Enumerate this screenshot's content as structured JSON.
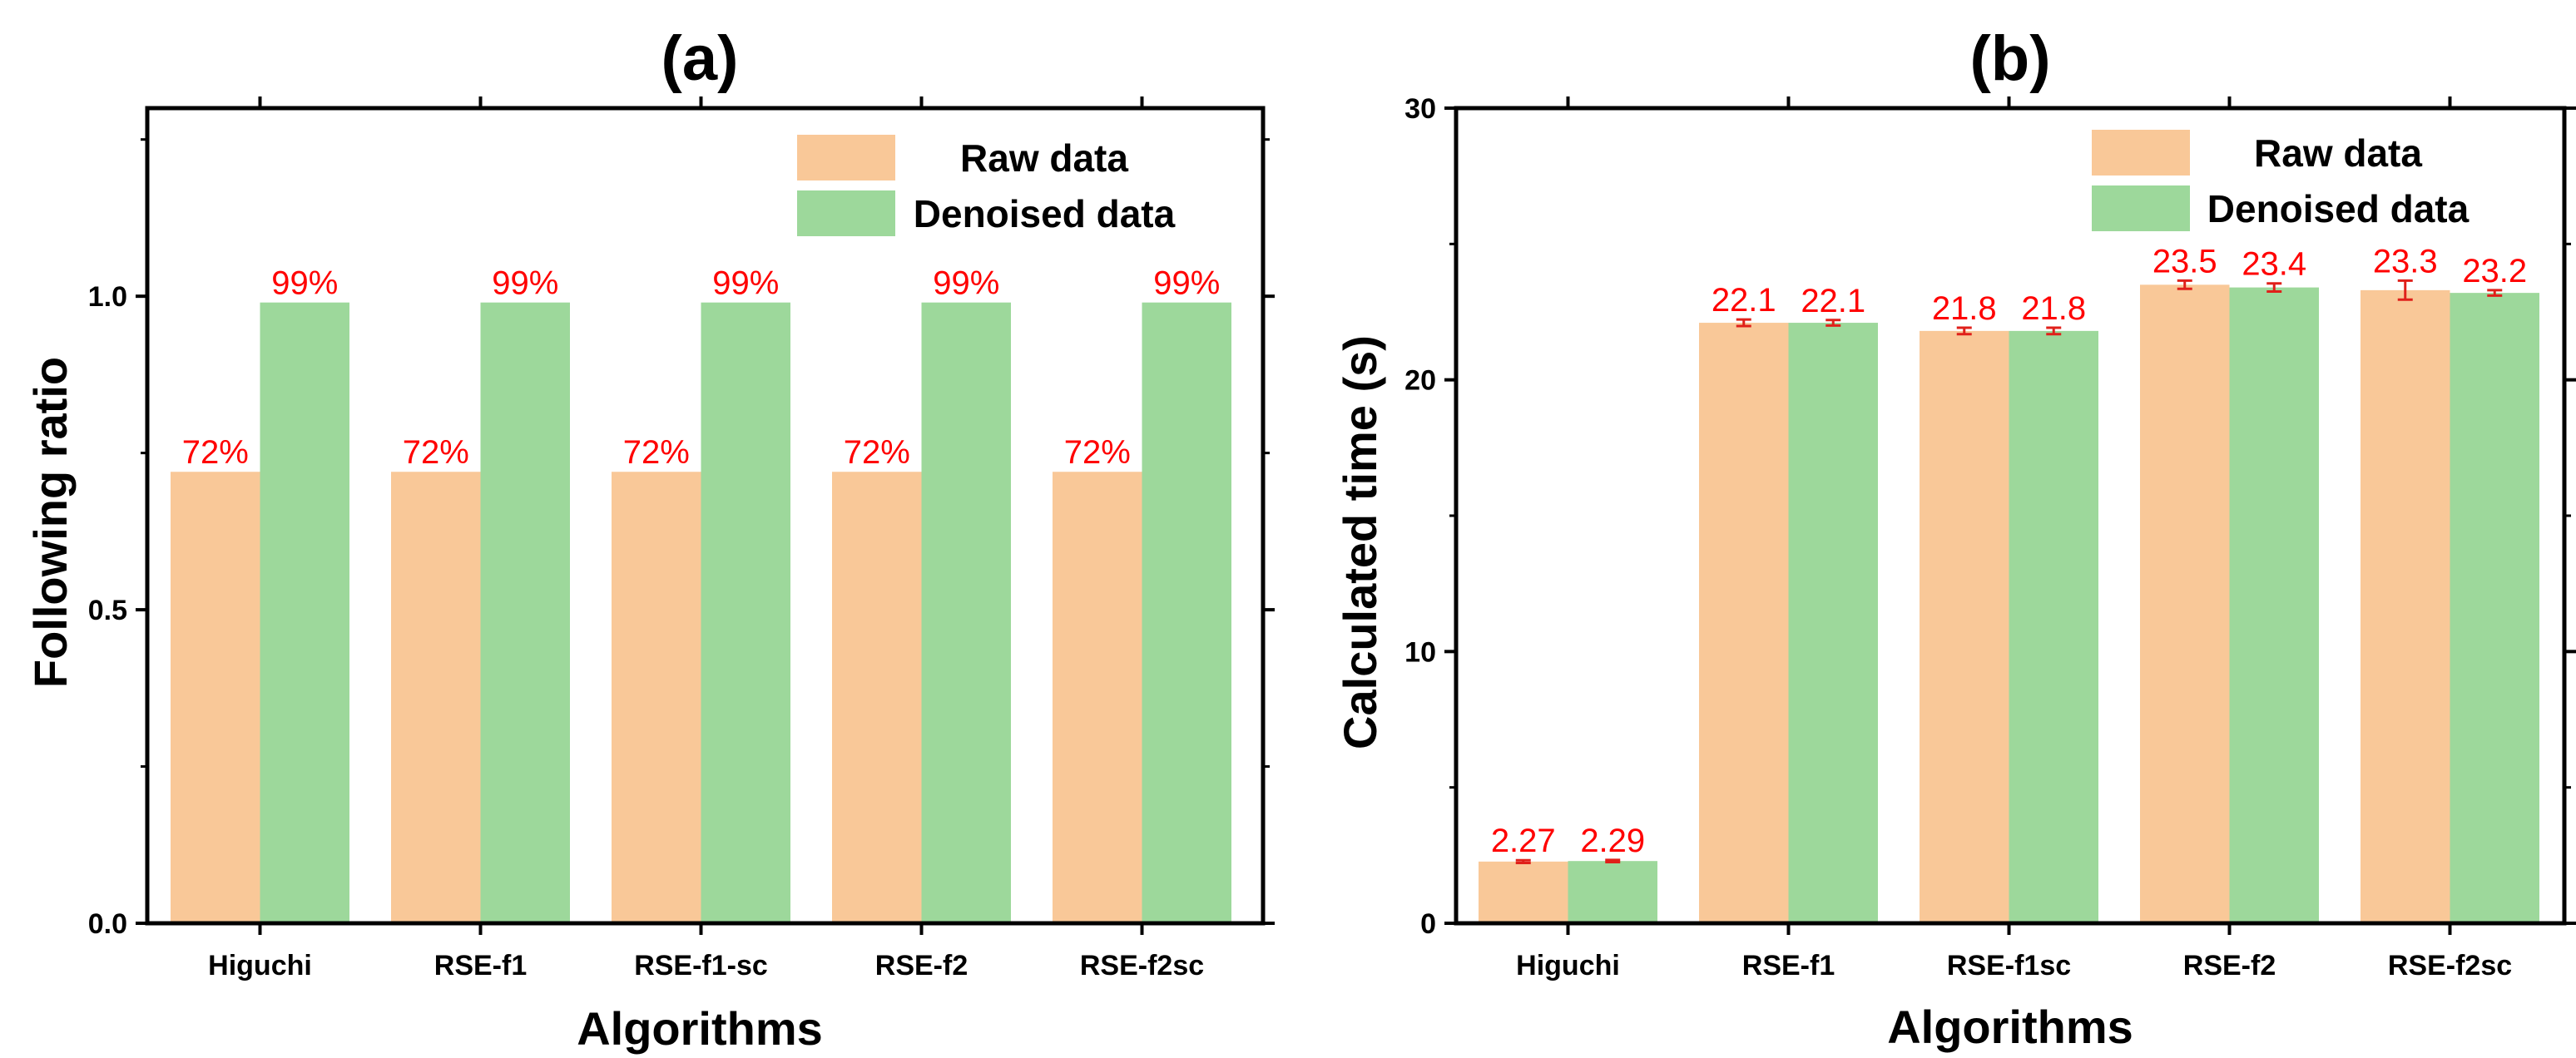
{
  "colors": {
    "raw": "#f9c898",
    "denoised": "#9dd89b",
    "label": "#ff0000",
    "errorbar": "#e0201a",
    "axis": "#000000"
  },
  "chart_data": [
    {
      "type": "bar",
      "title": "(a)",
      "xlabel": "Algorithms",
      "ylabel": "Following ratio",
      "categories": [
        "Higuchi",
        "RSE-f1",
        "RSE-f1-sc",
        "RSE-f2",
        "RSE-f2sc"
      ],
      "ylim": [
        0,
        1.3
      ],
      "yticks": [
        0.0,
        0.5,
        1.0
      ],
      "ytick_labels": [
        "0.0",
        "0.5",
        "1.0"
      ],
      "series": [
        {
          "name": "Raw data",
          "values": [
            0.72,
            0.72,
            0.72,
            0.72,
            0.72
          ],
          "labels": [
            "72%",
            "72%",
            "72%",
            "72%",
            "72%"
          ]
        },
        {
          "name": "Denoised data",
          "values": [
            0.99,
            0.99,
            0.99,
            0.99,
            0.99
          ],
          "labels": [
            "99%",
            "99%",
            "99%",
            "99%",
            "99%"
          ]
        }
      ],
      "legend_position": "top-right"
    },
    {
      "type": "bar",
      "title": "(b)",
      "xlabel": "Algorithms",
      "ylabel": "Calculated time (s)",
      "categories": [
        "Higuchi",
        "RSE-f1",
        "RSE-f1sc",
        "RSE-f2",
        "RSE-f2sc"
      ],
      "ylim": [
        0,
        30
      ],
      "yticks": [
        0,
        10,
        20,
        30
      ],
      "ytick_labels": [
        "0",
        "10",
        "20",
        "30"
      ],
      "series": [
        {
          "name": "Raw data",
          "values": [
            2.27,
            22.1,
            21.8,
            23.5,
            23.3
          ],
          "errors": [
            0.05,
            0.12,
            0.12,
            0.15,
            0.35
          ],
          "labels": [
            "2.27",
            "22.1",
            "21.8",
            "23.5",
            "23.3"
          ]
        },
        {
          "name": "Denoised data",
          "values": [
            2.29,
            22.1,
            21.8,
            23.4,
            23.2
          ],
          "errors": [
            0.04,
            0.1,
            0.12,
            0.15,
            0.1
          ],
          "labels": [
            "2.29",
            "22.1",
            "21.8",
            "23.4",
            "23.2"
          ]
        }
      ],
      "legend_position": "top-right"
    }
  ]
}
